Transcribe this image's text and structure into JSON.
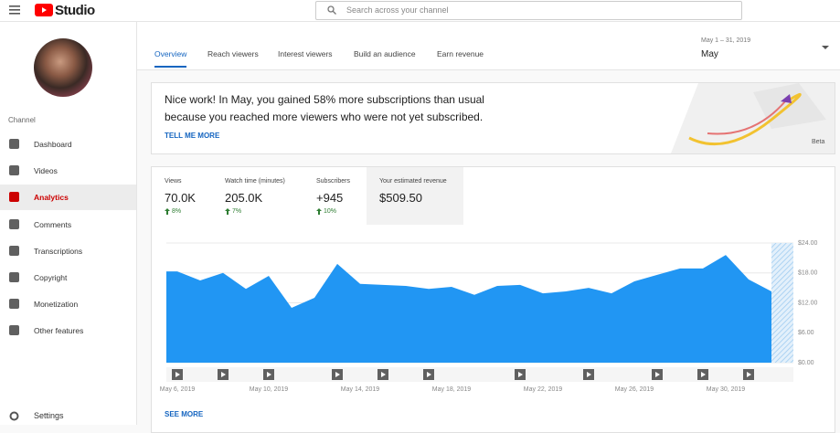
{
  "header": {
    "logo": "Studio",
    "search_placeholder": "Search across your channel"
  },
  "sidebar": {
    "section_label": "Channel",
    "items": [
      "Dashboard",
      "Videos",
      "Analytics",
      "Comments",
      "Transcriptions",
      "Copyright",
      "Monetization",
      "Other features"
    ],
    "active": "Analytics",
    "settings": "Settings"
  },
  "tabs": {
    "items": [
      "Overview",
      "Reach viewers",
      "Interest viewers",
      "Build an audience",
      "Earn revenue"
    ],
    "active": "Overview"
  },
  "date_range": {
    "range": "May 1 – 31, 2019",
    "month": "May"
  },
  "banner": {
    "text": "Nice work! In May, you gained 58% more subscriptions than usual because you reached more viewers who were not yet subscribed.",
    "link": "TELL ME MORE",
    "badge": "Beta"
  },
  "metrics": [
    {
      "label": "Views",
      "value": "70.0K",
      "change": "8%"
    },
    {
      "label": "Watch time (minutes)",
      "value": "205.0K",
      "change": "7%"
    },
    {
      "label": "Subscribers",
      "value": "+945",
      "change": "10%"
    },
    {
      "label": "Your estimated revenue",
      "value": "$509.50"
    }
  ],
  "chart_data": {
    "type": "area",
    "color": "#2196f3",
    "grid": true,
    "categories": [
      "May 6, 2019",
      null,
      null,
      null,
      "May 10, 2019",
      null,
      null,
      null,
      "May 14, 2019",
      null,
      null,
      null,
      "May 18, 2019",
      null,
      null,
      null,
      "May 22, 2019",
      null,
      null,
      null,
      "May 26, 2019",
      null,
      null,
      null,
      "May 30, 2019",
      null,
      null
    ],
    "values": [
      18.3,
      16.5,
      18.0,
      14.8,
      17.4,
      11.0,
      13.0,
      19.8,
      15.8,
      15.6,
      15.4,
      14.8,
      15.2,
      13.6,
      15.4,
      15.6,
      13.9,
      14.3,
      15.0,
      13.9,
      16.3,
      17.6,
      18.9,
      18.9,
      21.6,
      16.7,
      14.3
    ],
    "ylim": [
      0,
      24
    ],
    "yticks": [
      {
        "value": 0,
        "label": "$0.00"
      },
      {
        "value": 6,
        "label": "$6.00"
      },
      {
        "value": 12,
        "label": "$12.00"
      },
      {
        "value": 18,
        "label": "$18.00"
      },
      {
        "value": 24,
        "label": "$24.00"
      }
    ]
  },
  "see_more": "SEE MORE"
}
